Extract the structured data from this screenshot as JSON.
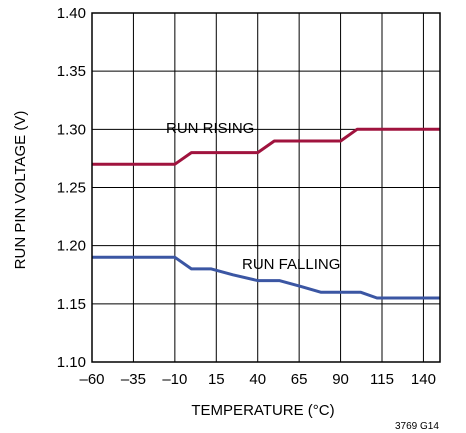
{
  "chart_data": {
    "type": "line",
    "xlabel": "TEMPERATURE (°C)",
    "ylabel": "RUN PIN VOLTAGE (V)",
    "xlim": [
      -60,
      150
    ],
    "ylim": [
      1.1,
      1.4
    ],
    "x_ticks": [
      -60,
      -35,
      -10,
      15,
      40,
      65,
      90,
      115,
      140
    ],
    "x_tick_labels": [
      "–60",
      "–35",
      "–10",
      "15",
      "40",
      "65",
      "90",
      "115",
      "140"
    ],
    "y_ticks": [
      1.1,
      1.15,
      1.2,
      1.25,
      1.3,
      1.35,
      1.4
    ],
    "y_tick_labels": [
      "1.10",
      "1.15",
      "1.20",
      "1.25",
      "1.30",
      "1.35",
      "1.40"
    ],
    "grid": true,
    "figure_id": "3769 G14",
    "series": [
      {
        "name": "RUN RISING",
        "color": "#a0133e",
        "x": [
          -60,
          -10,
          0,
          40,
          50,
          90,
          100,
          150
        ],
        "y": [
          1.27,
          1.27,
          1.28,
          1.28,
          1.29,
          1.29,
          1.3,
          1.3
        ]
      },
      {
        "name": "RUN FALLING",
        "color": "#3b56a3",
        "x": [
          -60,
          -10,
          0,
          12,
          25,
          40,
          53,
          66,
          78,
          102,
          112,
          150
        ],
        "y": [
          1.19,
          1.19,
          1.18,
          1.18,
          1.175,
          1.17,
          1.17,
          1.165,
          1.16,
          1.16,
          1.155,
          1.155
        ]
      }
    ]
  }
}
